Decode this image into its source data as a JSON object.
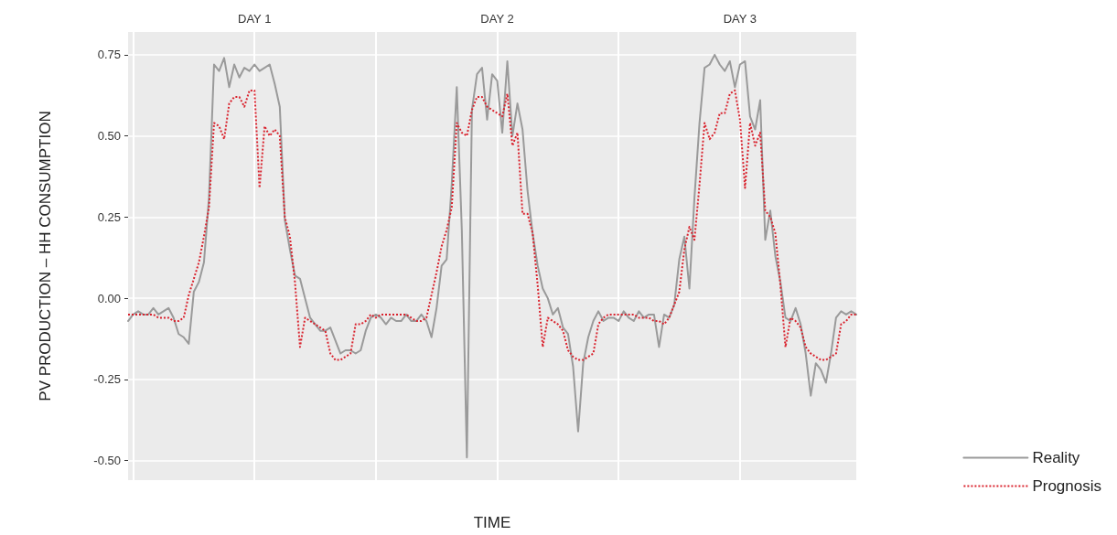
{
  "chart_data": {
    "type": "line",
    "xlabel": "TIME",
    "ylabel": "PV PRODUCTION – HH CONSUMPTION",
    "annotations": [
      "DAY 1",
      "DAY 2",
      "DAY 3"
    ],
    "categories": [
      null,
      null,
      null,
      null,
      null,
      null,
      null,
      null,
      null,
      null,
      null,
      null,
      null,
      null,
      null,
      null,
      null,
      null,
      null,
      null,
      null,
      null,
      null,
      null,
      null,
      null,
      null,
      null,
      null,
      null,
      null,
      null,
      null,
      null,
      null,
      null,
      null,
      null,
      null,
      null,
      null,
      null,
      null,
      null,
      null,
      null,
      null,
      null,
      null,
      null,
      null,
      null,
      null,
      null,
      null,
      null,
      null,
      null,
      null,
      null,
      null,
      null,
      null,
      null,
      null,
      null,
      null,
      null,
      null,
      null,
      null,
      null,
      null,
      null,
      null,
      null,
      null,
      null,
      null,
      null,
      null,
      null,
      null,
      null,
      null,
      null,
      null,
      null,
      null,
      null,
      null,
      null,
      null,
      null,
      null,
      null,
      null,
      null,
      null,
      null,
      null,
      null,
      null,
      null,
      null,
      null,
      null,
      null,
      null,
      null,
      null,
      null,
      null,
      null,
      null,
      null,
      null,
      null,
      null,
      null,
      null,
      null,
      null,
      null,
      null,
      null,
      null,
      null,
      null,
      null,
      null,
      null,
      null,
      null,
      null,
      null,
      null,
      null,
      null,
      null,
      null,
      null,
      null,
      null,
      null
    ],
    "ylim": [
      -0.56,
      0.82
    ],
    "yticks": [
      {
        "value": -0.5,
        "label": "-0.50"
      },
      {
        "value": -0.25,
        "label": "-0.25"
      },
      {
        "value": 0,
        "label": "0.00"
      },
      {
        "value": 0.25,
        "label": "0.25"
      },
      {
        "value": 0.5,
        "label": "0.50"
      },
      {
        "value": 0.75,
        "label": "0.75"
      }
    ],
    "grid": true,
    "legend": "bottom right",
    "marker": "none",
    "series": [
      {
        "name": "Reality",
        "color": "#9a9a9a",
        "line_style": "solid",
        "values": [
          -0.07,
          -0.05,
          -0.04,
          -0.05,
          -0.05,
          -0.03,
          -0.05,
          -0.04,
          -0.03,
          -0.06,
          -0.11,
          -0.12,
          -0.14,
          0.02,
          0.05,
          0.11,
          0.31,
          0.72,
          0.7,
          0.74,
          0.65,
          0.72,
          0.68,
          0.71,
          0.7,
          0.72,
          0.7,
          0.71,
          0.72,
          0.66,
          0.59,
          0.24,
          0.15,
          0.07,
          0.06,
          0.0,
          -0.06,
          -0.08,
          -0.1,
          -0.1,
          -0.09,
          -0.13,
          -0.17,
          -0.16,
          -0.16,
          -0.17,
          -0.16,
          -0.1,
          -0.06,
          -0.05,
          -0.06,
          -0.08,
          -0.06,
          -0.07,
          -0.07,
          -0.05,
          -0.07,
          -0.07,
          -0.05,
          -0.07,
          -0.12,
          -0.03,
          0.1,
          0.12,
          0.35,
          0.65,
          0.21,
          -0.49,
          0.58,
          0.69,
          0.71,
          0.55,
          0.69,
          0.67,
          0.51,
          0.73,
          0.5,
          0.6,
          0.52,
          0.33,
          0.2,
          0.1,
          0.03,
          0.0,
          -0.05,
          -0.03,
          -0.09,
          -0.11,
          -0.21,
          -0.41,
          -0.2,
          -0.12,
          -0.07,
          -0.04,
          -0.07,
          -0.06,
          -0.06,
          -0.07,
          -0.04,
          -0.06,
          -0.07,
          -0.04,
          -0.06,
          -0.05,
          -0.05,
          -0.15,
          -0.05,
          -0.06,
          -0.02,
          0.12,
          0.19,
          0.03,
          0.31,
          0.54,
          0.71,
          0.72,
          0.75,
          0.72,
          0.7,
          0.73,
          0.65,
          0.72,
          0.73,
          0.56,
          0.52,
          0.61,
          0.18,
          0.27,
          0.13,
          0.05,
          -0.06,
          -0.07,
          -0.03,
          -0.08,
          -0.17,
          -0.3,
          -0.2,
          -0.22,
          -0.26,
          -0.17,
          -0.06,
          -0.04,
          -0.05,
          -0.04,
          -0.05
        ]
      },
      {
        "name": "Prognosis",
        "color": "#d9232e",
        "line_style": "dotted",
        "values": [
          -0.05,
          -0.05,
          -0.05,
          -0.05,
          -0.05,
          -0.05,
          -0.06,
          -0.06,
          -0.06,
          -0.07,
          -0.07,
          -0.06,
          0.01,
          0.06,
          0.11,
          0.19,
          0.28,
          0.54,
          0.53,
          0.49,
          0.6,
          0.62,
          0.62,
          0.59,
          0.64,
          0.64,
          0.34,
          0.53,
          0.5,
          0.52,
          0.5,
          0.25,
          0.19,
          0.05,
          -0.15,
          -0.06,
          -0.07,
          -0.08,
          -0.09,
          -0.1,
          -0.17,
          -0.19,
          -0.19,
          -0.18,
          -0.17,
          -0.08,
          -0.08,
          -0.07,
          -0.05,
          -0.06,
          -0.05,
          -0.05,
          -0.05,
          -0.05,
          -0.05,
          -0.05,
          -0.06,
          -0.07,
          -0.07,
          -0.06,
          0.01,
          0.08,
          0.16,
          0.21,
          0.28,
          0.54,
          0.51,
          0.5,
          0.58,
          0.62,
          0.62,
          0.59,
          0.58,
          0.57,
          0.56,
          0.63,
          0.47,
          0.51,
          0.26,
          0.26,
          0.2,
          0.04,
          -0.15,
          -0.06,
          -0.07,
          -0.08,
          -0.1,
          -0.16,
          -0.18,
          -0.19,
          -0.19,
          -0.18,
          -0.17,
          -0.08,
          -0.06,
          -0.05,
          -0.05,
          -0.05,
          -0.05,
          -0.05,
          -0.05,
          -0.06,
          -0.06,
          -0.06,
          -0.07,
          -0.07,
          -0.08,
          -0.06,
          -0.02,
          0.02,
          0.15,
          0.22,
          0.18,
          0.35,
          0.54,
          0.49,
          0.51,
          0.57,
          0.57,
          0.63,
          0.64,
          0.55,
          0.34,
          0.54,
          0.47,
          0.51,
          0.27,
          0.25,
          0.2,
          0.04,
          -0.15,
          -0.06,
          -0.07,
          -0.09,
          -0.15,
          -0.17,
          -0.18,
          -0.19,
          -0.19,
          -0.18,
          -0.17,
          -0.08,
          -0.07,
          -0.05,
          -0.05
        ]
      }
    ]
  }
}
